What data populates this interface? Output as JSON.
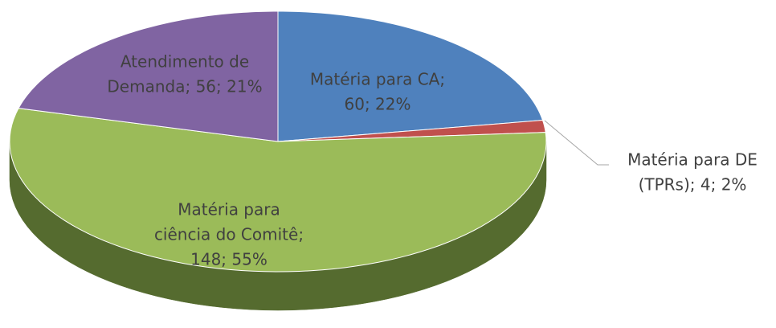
{
  "chart_data": {
    "type": "pie3d",
    "values": [
      60,
      4,
      148,
      56
    ],
    "value_labels": [
      [
        "Matéria para CA;",
        "60; 22%"
      ],
      [
        "Matéria para DE",
        "(TPRs); 4; 2%"
      ],
      [
        "Matéria para",
        "ciência do Comitê;",
        "148; 55%"
      ],
      [
        "Atendimento de",
        "Demanda; 56; 21%"
      ]
    ],
    "colors": [
      "#4f81bd",
      "#c0504d",
      "#9bbb59",
      "#8064a2"
    ],
    "side_colors": [
      "#2f4f78",
      "#7a2f2d",
      "#556b2f",
      "#4d3b63"
    ]
  }
}
